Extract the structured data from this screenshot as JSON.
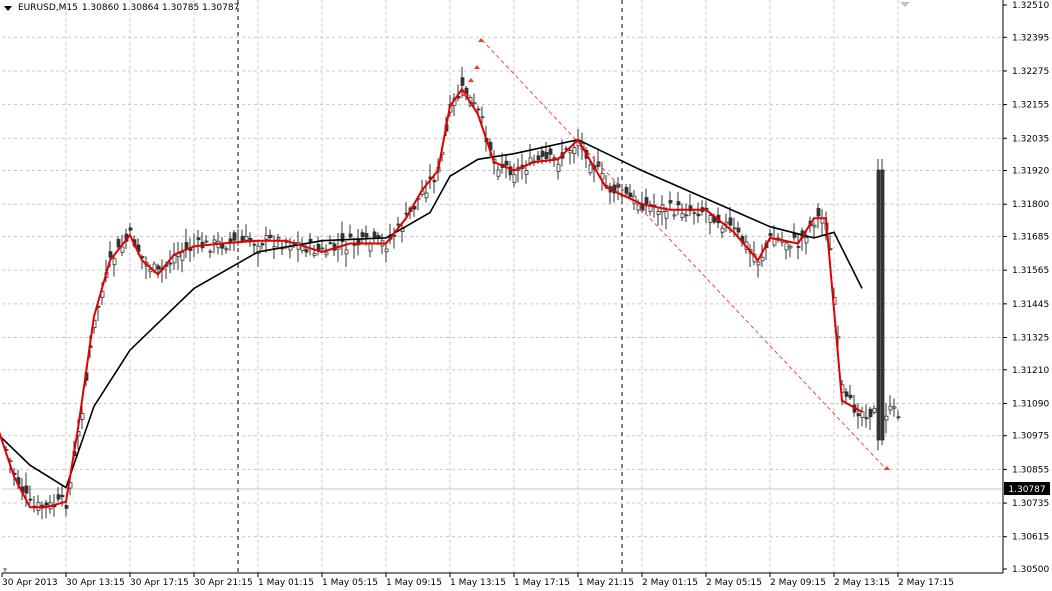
{
  "window": {
    "symbol_title": "EURUSD,M15",
    "ohlc_text": "1.30860 1.30864 1.30785 1.30787"
  },
  "price_axis": {
    "labels": [
      "1.32510",
      "1.32395",
      "1.32275",
      "1.32155",
      "1.32035",
      "1.31920",
      "1.31800",
      "1.31685",
      "1.31565",
      "1.31445",
      "1.31325",
      "1.31210",
      "1.31090",
      "1.30975",
      "1.30855",
      "1.30735",
      "1.30615",
      "1.30500"
    ],
    "current_price_label": "1.30787"
  },
  "time_axis": {
    "labels": [
      "30 Apr 2013",
      "30 Apr 13:15",
      "30 Apr 17:15",
      "30 Apr 21:15",
      "1 May 01:15",
      "1 May 05:15",
      "1 May 09:15",
      "1 May 13:15",
      "1 May 17:15",
      "1 May 21:15",
      "2 May 01:15",
      "2 May 05:15",
      "2 May 09:15",
      "2 May 13:15",
      "2 May 17:15"
    ]
  },
  "colors": {
    "background": "#ffffff",
    "grid": "#c8c8c8",
    "candles": "#333333",
    "fast_ma": "#e00000",
    "slow_ma": "#000000",
    "trendline": "#ff4040",
    "period_separator": "#000000",
    "current_price_badge": "#000000"
  },
  "chart_data": {
    "type": "candlestick",
    "symbol": "EURUSD",
    "timeframe": "M15",
    "ylim": [
      1.305,
      1.3251
    ],
    "indicators": [
      "fast moving average (red)",
      "slow moving average (black)"
    ],
    "fast_ma": [
      [
        "30 Apr 09:00",
        1.31
      ],
      [
        "30 Apr 10:00",
        1.3083
      ],
      [
        "30 Apr 11:00",
        1.3072
      ],
      [
        "30 Apr 12:00",
        1.3072
      ],
      [
        "30 Apr 13:15",
        1.3074
      ],
      [
        "30 Apr 14:00",
        1.31
      ],
      [
        "30 Apr 15:00",
        1.314
      ],
      [
        "30 Apr 16:00",
        1.316
      ],
      [
        "30 Apr 17:15",
        1.3169
      ],
      [
        "30 Apr 18:00",
        1.316
      ],
      [
        "30 Apr 19:00",
        1.3155
      ],
      [
        "30 Apr 20:00",
        1.3162
      ],
      [
        "30 Apr 21:15",
        1.3165
      ],
      [
        "30 Apr 23:00",
        1.3166
      ],
      [
        "1 May 01:15",
        1.3167
      ],
      [
        "1 May 03:00",
        1.3167
      ],
      [
        "1 May 05:15",
        1.3163
      ],
      [
        "1 May 07:00",
        1.3166
      ],
      [
        "1 May 09:15",
        1.3166
      ],
      [
        "1 May 10:30",
        1.3175
      ],
      [
        "1 May 11:30",
        1.3185
      ],
      [
        "1 May 12:30",
        1.3192
      ],
      [
        "1 May 13:15",
        1.3215
      ],
      [
        "1 May 14:00",
        1.3221
      ],
      [
        "1 May 15:00",
        1.3212
      ],
      [
        "1 May 16:00",
        1.3195
      ],
      [
        "1 May 17:15",
        1.3192
      ],
      [
        "1 May 18:30",
        1.3195
      ],
      [
        "1 May 20:00",
        1.3196
      ],
      [
        "1 May 21:15",
        1.3203
      ],
      [
        "1 May 23:00",
        1.3186
      ],
      [
        "2 May 01:15",
        1.318
      ],
      [
        "2 May 03:00",
        1.3178
      ],
      [
        "2 May 05:15",
        1.3178
      ],
      [
        "2 May 07:00",
        1.317
      ],
      [
        "2 May 08:30",
        1.316
      ],
      [
        "2 May 09:15",
        1.3168
      ],
      [
        "2 May 11:00",
        1.3166
      ],
      [
        "2 May 12:00",
        1.3175
      ],
      [
        "2 May 12:45",
        1.3175
      ],
      [
        "2 May 13:45",
        1.311
      ],
      [
        "2 May 15:00",
        1.3106
      ]
    ],
    "slow_ma": [
      [
        "30 Apr 09:00",
        1.3098
      ],
      [
        "30 Apr 11:00",
        1.3087
      ],
      [
        "30 Apr 13:15",
        1.3079
      ],
      [
        "30 Apr 15:00",
        1.3108
      ],
      [
        "30 Apr 17:15",
        1.3128
      ],
      [
        "30 Apr 21:15",
        1.315
      ],
      [
        "1 May 01:15",
        1.3163
      ],
      [
        "1 May 05:15",
        1.3167
      ],
      [
        "1 May 09:15",
        1.3168
      ],
      [
        "1 May 12:00",
        1.3177
      ],
      [
        "1 May 13:15",
        1.319
      ],
      [
        "1 May 15:00",
        1.3196
      ],
      [
        "1 May 17:15",
        1.3198
      ],
      [
        "1 May 21:15",
        1.3203
      ],
      [
        "2 May 01:15",
        1.3192
      ],
      [
        "2 May 05:15",
        1.3182
      ],
      [
        "2 May 09:15",
        1.3172
      ],
      [
        "2 May 12:00",
        1.3168
      ],
      [
        "2 May 13:15",
        1.317
      ],
      [
        "2 May 15:00",
        1.315
      ]
    ]
  }
}
